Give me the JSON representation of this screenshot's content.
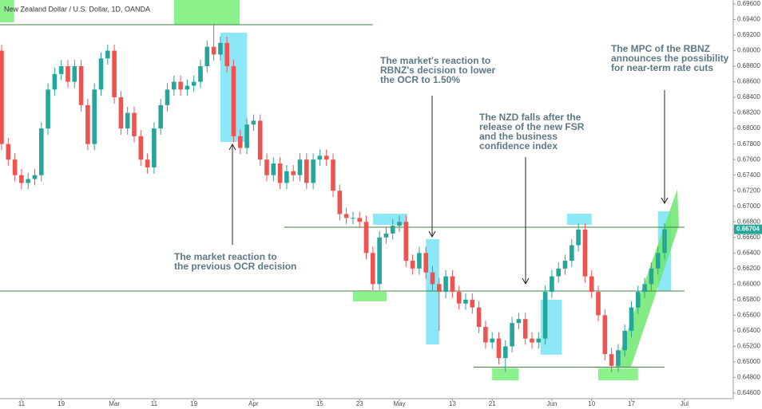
{
  "chart_data": {
    "type": "candlestick",
    "title": "New Zealand Dollar / U.S. Dollar, 1D, OANDA",
    "up_color": "#26a69a",
    "down_color": "#ef5350",
    "xlim": [
      -0.24,
      110.36
    ],
    "ylim": [
      0.64528,
      0.69651
    ],
    "xticks": [
      {
        "value": 3,
        "label": "11"
      },
      {
        "value": 9,
        "label": "19"
      },
      {
        "value": 17,
        "label": "Mar"
      },
      {
        "value": 23,
        "label": "11"
      },
      {
        "value": 29,
        "label": "19"
      },
      {
        "value": 38,
        "label": "Apr"
      },
      {
        "value": 48,
        "label": "15"
      },
      {
        "value": 54,
        "label": "23"
      },
      {
        "value": 60,
        "label": "May"
      },
      {
        "value": 68,
        "label": "13"
      },
      {
        "value": 74,
        "label": "21"
      },
      {
        "value": 83,
        "label": "Jun"
      },
      {
        "value": 89,
        "label": "10"
      },
      {
        "value": 95,
        "label": "17"
      },
      {
        "value": 103,
        "label": "Jul"
      }
    ],
    "yticks": [
      {
        "value": 0.646,
        "label": "0.64600"
      },
      {
        "value": 0.648,
        "label": "0.64800"
      },
      {
        "value": 0.65,
        "label": "0.65000"
      },
      {
        "value": 0.652,
        "label": "0.65200"
      },
      {
        "value": 0.654,
        "label": "0.65400"
      },
      {
        "value": 0.656,
        "label": "0.65600"
      },
      {
        "value": 0.658,
        "label": "0.65800"
      },
      {
        "value": 0.66,
        "label": "0.66000"
      },
      {
        "value": 0.662,
        "label": "0.66200"
      },
      {
        "value": 0.664,
        "label": "0.66400"
      },
      {
        "value": 0.666,
        "label": "0.66600"
      },
      {
        "value": 0.668,
        "label": "0.66800"
      },
      {
        "value": 0.67,
        "label": "0.67000"
      },
      {
        "value": 0.672,
        "label": "0.67200"
      },
      {
        "value": 0.674,
        "label": "0.67400"
      },
      {
        "value": 0.676,
        "label": "0.67600"
      },
      {
        "value": 0.678,
        "label": "0.67800"
      },
      {
        "value": 0.68,
        "label": "0.68000"
      },
      {
        "value": 0.682,
        "label": "0.68200"
      },
      {
        "value": 0.684,
        "label": "0.68400"
      },
      {
        "value": 0.686,
        "label": "0.68600"
      },
      {
        "value": 0.688,
        "label": "0.68800"
      },
      {
        "value": 0.69,
        "label": "0.69000"
      },
      {
        "value": 0.692,
        "label": "0.69200"
      },
      {
        "value": 0.694,
        "label": "0.69400"
      },
      {
        "value": 0.696,
        "label": "0.69600"
      }
    ],
    "open": [
      0.69,
      0.678,
      0.676,
      0.674,
      0.673,
      0.6735,
      0.674,
      0.68,
      0.685,
      0.687,
      0.688,
      0.686,
      0.688,
      0.683,
      0.678,
      0.685,
      0.689,
      0.69,
      0.684,
      0.68,
      0.682,
      0.679,
      0.676,
      0.675,
      0.68,
      0.683,
      0.685,
      0.686,
      0.685,
      0.6855,
      0.686,
      0.688,
      0.6905,
      0.6895,
      0.691,
      0.688,
      0.679,
      0.6775,
      0.6805,
      0.681,
      0.676,
      0.674,
      0.6755,
      0.673,
      0.6745,
      0.674,
      0.676,
      0.673,
      0.676,
      0.6765,
      0.676,
      0.672,
      0.669,
      0.6685,
      0.6685,
      0.668,
      0.664,
      0.66,
      0.666,
      0.6665,
      0.6675,
      0.668,
      0.663,
      0.662,
      0.664,
      0.6615,
      0.66,
      0.659,
      0.661,
      0.659,
      0.6575,
      0.658,
      0.657,
      0.6545,
      0.6525,
      0.653,
      0.6505,
      0.652,
      0.655,
      0.6555,
      0.653,
      0.6525,
      0.653,
      0.659,
      0.661,
      0.662,
      0.663,
      0.665,
      0.667,
      0.661,
      0.659,
      0.656,
      0.651,
      0.6495,
      0.6515,
      0.654,
      0.657,
      0.659,
      0.66,
      0.662,
      0.664
    ],
    "high": [
      0.6908,
      0.6788,
      0.6768,
      0.6748,
      0.6743,
      0.6748,
      0.6808,
      0.6858,
      0.6878,
      0.6888,
      0.6888,
      0.6888,
      0.6888,
      0.6838,
      0.6858,
      0.6898,
      0.6908,
      0.6908,
      0.6848,
      0.6828,
      0.6828,
      0.6798,
      0.6768,
      0.6808,
      0.6838,
      0.6858,
      0.6868,
      0.6868,
      0.6863,
      0.6868,
      0.6888,
      0.6913,
      0.6935,
      0.6918,
      0.6918,
      0.6888,
      0.6798,
      0.6813,
      0.6818,
      0.6818,
      0.6768,
      0.6763,
      0.6763,
      0.6753,
      0.6753,
      0.6768,
      0.6768,
      0.6768,
      0.6773,
      0.6773,
      0.6768,
      0.6728,
      0.6698,
      0.6693,
      0.6693,
      0.6688,
      0.6648,
      0.6668,
      0.6673,
      0.6683,
      0.6688,
      0.6688,
      0.6638,
      0.6648,
      0.6648,
      0.6623,
      0.6608,
      0.6618,
      0.6618,
      0.6598,
      0.6588,
      0.6588,
      0.6578,
      0.6553,
      0.6538,
      0.6538,
      0.6528,
      0.6558,
      0.6563,
      0.6563,
      0.6538,
      0.6538,
      0.6598,
      0.6618,
      0.6628,
      0.6638,
      0.6658,
      0.6678,
      0.6678,
      0.6618,
      0.6598,
      0.6568,
      0.6518,
      0.6523,
      0.6548,
      0.6578,
      0.6598,
      0.6608,
      0.6628,
      0.6648,
      0.6678
    ],
    "low": [
      0.6772,
      0.6752,
      0.6732,
      0.6722,
      0.6722,
      0.6727,
      0.6732,
      0.6792,
      0.6842,
      0.6862,
      0.6852,
      0.6852,
      0.6822,
      0.6772,
      0.6772,
      0.6842,
      0.6882,
      0.6832,
      0.6792,
      0.6792,
      0.6782,
      0.6752,
      0.6742,
      0.6742,
      0.6792,
      0.6822,
      0.6842,
      0.6842,
      0.6842,
      0.6847,
      0.6852,
      0.6872,
      0.6887,
      0.6887,
      0.6872,
      0.6782,
      0.6767,
      0.6767,
      0.6797,
      0.6752,
      0.6732,
      0.6732,
      0.6722,
      0.6722,
      0.6732,
      0.6732,
      0.6722,
      0.6722,
      0.6752,
      0.6752,
      0.6712,
      0.6682,
      0.6677,
      0.6677,
      0.6672,
      0.6632,
      0.6592,
      0.6592,
      0.6652,
      0.6657,
      0.6667,
      0.6622,
      0.6612,
      0.6612,
      0.6607,
      0.6592,
      0.654,
      0.6582,
      0.6582,
      0.6567,
      0.6567,
      0.6562,
      0.6537,
      0.6517,
      0.6517,
      0.6497,
      0.6487,
      0.6512,
      0.6542,
      0.6522,
      0.6517,
      0.6517,
      0.6522,
      0.6582,
      0.6602,
      0.6612,
      0.6622,
      0.6642,
      0.6602,
      0.6582,
      0.6552,
      0.6502,
      0.6487,
      0.6487,
      0.6507,
      0.6532,
      0.6562,
      0.6582,
      0.6592,
      0.6612,
      0.6632
    ],
    "close": [
      0.678,
      0.676,
      0.674,
      0.673,
      0.6735,
      0.674,
      0.68,
      0.685,
      0.687,
      0.688,
      0.686,
      0.688,
      0.683,
      0.678,
      0.685,
      0.689,
      0.69,
      0.684,
      0.68,
      0.682,
      0.679,
      0.676,
      0.675,
      0.68,
      0.683,
      0.685,
      0.686,
      0.685,
      0.6855,
      0.686,
      0.688,
      0.6905,
      0.6895,
      0.691,
      0.688,
      0.679,
      0.6775,
      0.6805,
      0.681,
      0.676,
      0.674,
      0.6755,
      0.673,
      0.6745,
      0.674,
      0.676,
      0.673,
      0.676,
      0.6765,
      0.676,
      0.672,
      0.669,
      0.6685,
      0.6685,
      0.668,
      0.664,
      0.66,
      0.666,
      0.6665,
      0.6675,
      0.668,
      0.663,
      0.662,
      0.664,
      0.6615,
      0.66,
      0.659,
      0.661,
      0.659,
      0.6575,
      0.658,
      0.657,
      0.6545,
      0.6525,
      0.653,
      0.6505,
      0.652,
      0.655,
      0.6555,
      0.653,
      0.6525,
      0.653,
      0.659,
      0.661,
      0.662,
      0.663,
      0.665,
      0.667,
      0.661,
      0.659,
      0.656,
      0.651,
      0.6495,
      0.6515,
      0.654,
      0.657,
      0.659,
      0.66,
      0.662,
      0.664,
      0.66704
    ],
    "last_price": {
      "value": 0.66704,
      "label": "0.66704"
    },
    "levels": [
      {
        "value": 0.69334,
        "from": -0.24,
        "to": 56
      },
      {
        "value": 0.66731,
        "from": 42.6,
        "to": 103
      },
      {
        "value": 0.65911,
        "from": -0.24,
        "to": 103
      },
      {
        "value": 0.64933,
        "from": 71.2,
        "to": 100
      }
    ],
    "zones": [
      {
        "color": "#7ef07e",
        "from": -0.24,
        "to": 1.9,
        "top": 0.69651,
        "bottom": 0.69364
      },
      {
        "color": "#7ef07e",
        "from": 26,
        "to": 35.9,
        "top": 0.69651,
        "bottom": 0.69334
      },
      {
        "color": "#7fe6f5",
        "from": 33,
        "to": 37,
        "top": 0.69231,
        "bottom": 0.67827
      },
      {
        "color": "#7fe6f5",
        "from": 56,
        "to": 61.2,
        "top": 0.66905,
        "bottom": 0.66762
      },
      {
        "color": "#7ef07e",
        "from": 53,
        "to": 58.1,
        "top": 0.65901,
        "bottom": 0.65778
      },
      {
        "color": "#7fe6f5",
        "from": 64,
        "to": 66,
        "top": 0.66578,
        "bottom": 0.65225
      },
      {
        "color": "#7fe6f5",
        "from": 81.3,
        "to": 84.5,
        "top": 0.65799,
        "bottom": 0.65092
      },
      {
        "color": "#7ef07e",
        "from": 74,
        "to": 78,
        "top": 0.64918,
        "bottom": 0.64764
      },
      {
        "color": "#7fe6f5",
        "from": 85.3,
        "to": 89,
        "top": 0.66905,
        "bottom": 0.66762
      },
      {
        "color": "#7ef07e",
        "from": 90,
        "to": 96,
        "top": 0.64918,
        "bottom": 0.64764
      },
      {
        "color": "#7fe6f5",
        "from": 99,
        "to": 101,
        "top": 0.66936,
        "bottom": 0.65911
      }
    ],
    "annotations": [
      {
        "lines": [
          "The market reaction to",
          "the previous OCR decision"
        ]
      },
      {
        "lines": [
          "The market's reaction to",
          "RBNZ's decision to lower",
          "the OCR to 1.50%"
        ]
      },
      {
        "lines": [
          "The NZD falls after the",
          "release of the new FSR",
          "and the business",
          "confidence index"
        ]
      },
      {
        "lines": [
          "The MPC of the RBNZ",
          "announces the possibility",
          "for near-term rate cuts"
        ]
      }
    ]
  }
}
